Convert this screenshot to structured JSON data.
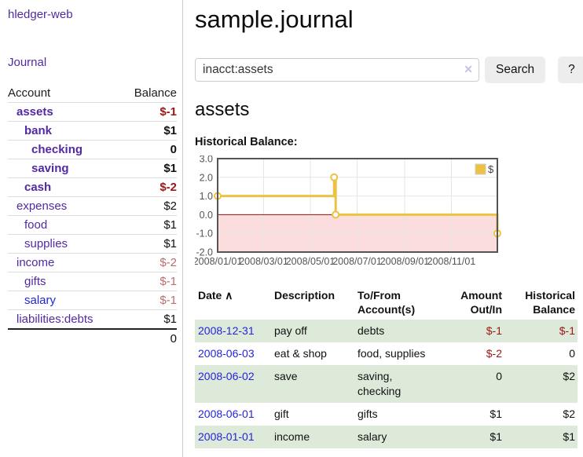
{
  "app": {
    "brand": "hledger-web"
  },
  "sidebar": {
    "journal_link": "Journal",
    "accounts": {
      "header_account": "Account",
      "header_balance": "Balance",
      "rows": [
        {
          "name": "assets",
          "balance": "$-1"
        },
        {
          "name": "bank",
          "balance": "$1"
        },
        {
          "name": "checking",
          "balance": "0"
        },
        {
          "name": "saving",
          "balance": "$1"
        },
        {
          "name": "cash",
          "balance": "$-2"
        },
        {
          "name": "expenses",
          "balance": "$2"
        },
        {
          "name": "food",
          "balance": "$1"
        },
        {
          "name": "supplies",
          "balance": "$1"
        },
        {
          "name": "income",
          "balance": "$-2"
        },
        {
          "name": "gifts",
          "balance": "$-1"
        },
        {
          "name": "salary",
          "balance": "$-1"
        },
        {
          "name": "liabilities:debts",
          "balance": "$1"
        }
      ],
      "total": "0"
    }
  },
  "main": {
    "title": "sample.journal",
    "search": {
      "value": "inacct:assets",
      "clear_icon": "✕",
      "search_button": "Search",
      "help_button": "?"
    },
    "account_heading": "assets",
    "chart_heading": "Historical Balance:",
    "register": {
      "sort_indicator": "∧",
      "headers": {
        "date": "Date",
        "description": "Description",
        "tofrom": "To/From Account(s)",
        "amount": "Amount Out/In",
        "balance": "Historical Balance"
      },
      "rows": [
        {
          "date": "2008-12-31",
          "description": "pay off",
          "accounts": "debts",
          "amount": "$-1",
          "balance": "$-1"
        },
        {
          "date": "2008-06-03",
          "description": "eat & shop",
          "accounts": "food, supplies",
          "amount": "$-2",
          "balance": "0"
        },
        {
          "date": "2008-06-02",
          "description": "save",
          "accounts": "saving, checking",
          "amount": "0",
          "balance": "$2"
        },
        {
          "date": "2008-06-01",
          "description": "gift",
          "accounts": "gifts",
          "amount": "$1",
          "balance": "$2"
        },
        {
          "date": "2008-01-01",
          "description": "income",
          "accounts": "salary",
          "amount": "$1",
          "balance": "$1"
        }
      ]
    }
  },
  "chart_data": {
    "type": "line",
    "step": true,
    "title": "Historical Balance:",
    "x_range": [
      "2008-01-01",
      "2008-12-31"
    ],
    "y_range": [
      -2,
      3
    ],
    "y_ticks": [
      "3.0",
      "2.0",
      "1.0",
      "0.0",
      "-1.0",
      "-2.0"
    ],
    "x_ticks": [
      "2008/01/01",
      "2008/03/01",
      "2008/05/01",
      "2008/07/01",
      "2008/09/01",
      "2008/11/01"
    ],
    "series": [
      {
        "name": "$",
        "color": "#edc240",
        "points": [
          [
            "2008-01-01",
            1
          ],
          [
            "2008-06-01",
            2
          ],
          [
            "2008-06-03",
            0
          ],
          [
            "2008-12-31",
            -1
          ]
        ]
      }
    ],
    "legend_position": "top-right",
    "grid": true,
    "grid_color": "#e6e6e6",
    "border_color": "#555555",
    "zero_line_color": "#8b1515",
    "negative_region_color": "#fbdddd",
    "tick_label_color": "#545454"
  },
  "colors": {
    "accent_purple": "#5229a5",
    "link_blue": "#2323dd",
    "negative_strong": "#9d1616",
    "negative_soft": "#bd6c6c",
    "row_stripe_green": "#ddeada",
    "series_gold": "#edc240",
    "negative_region_pink": "#fbdddd"
  }
}
